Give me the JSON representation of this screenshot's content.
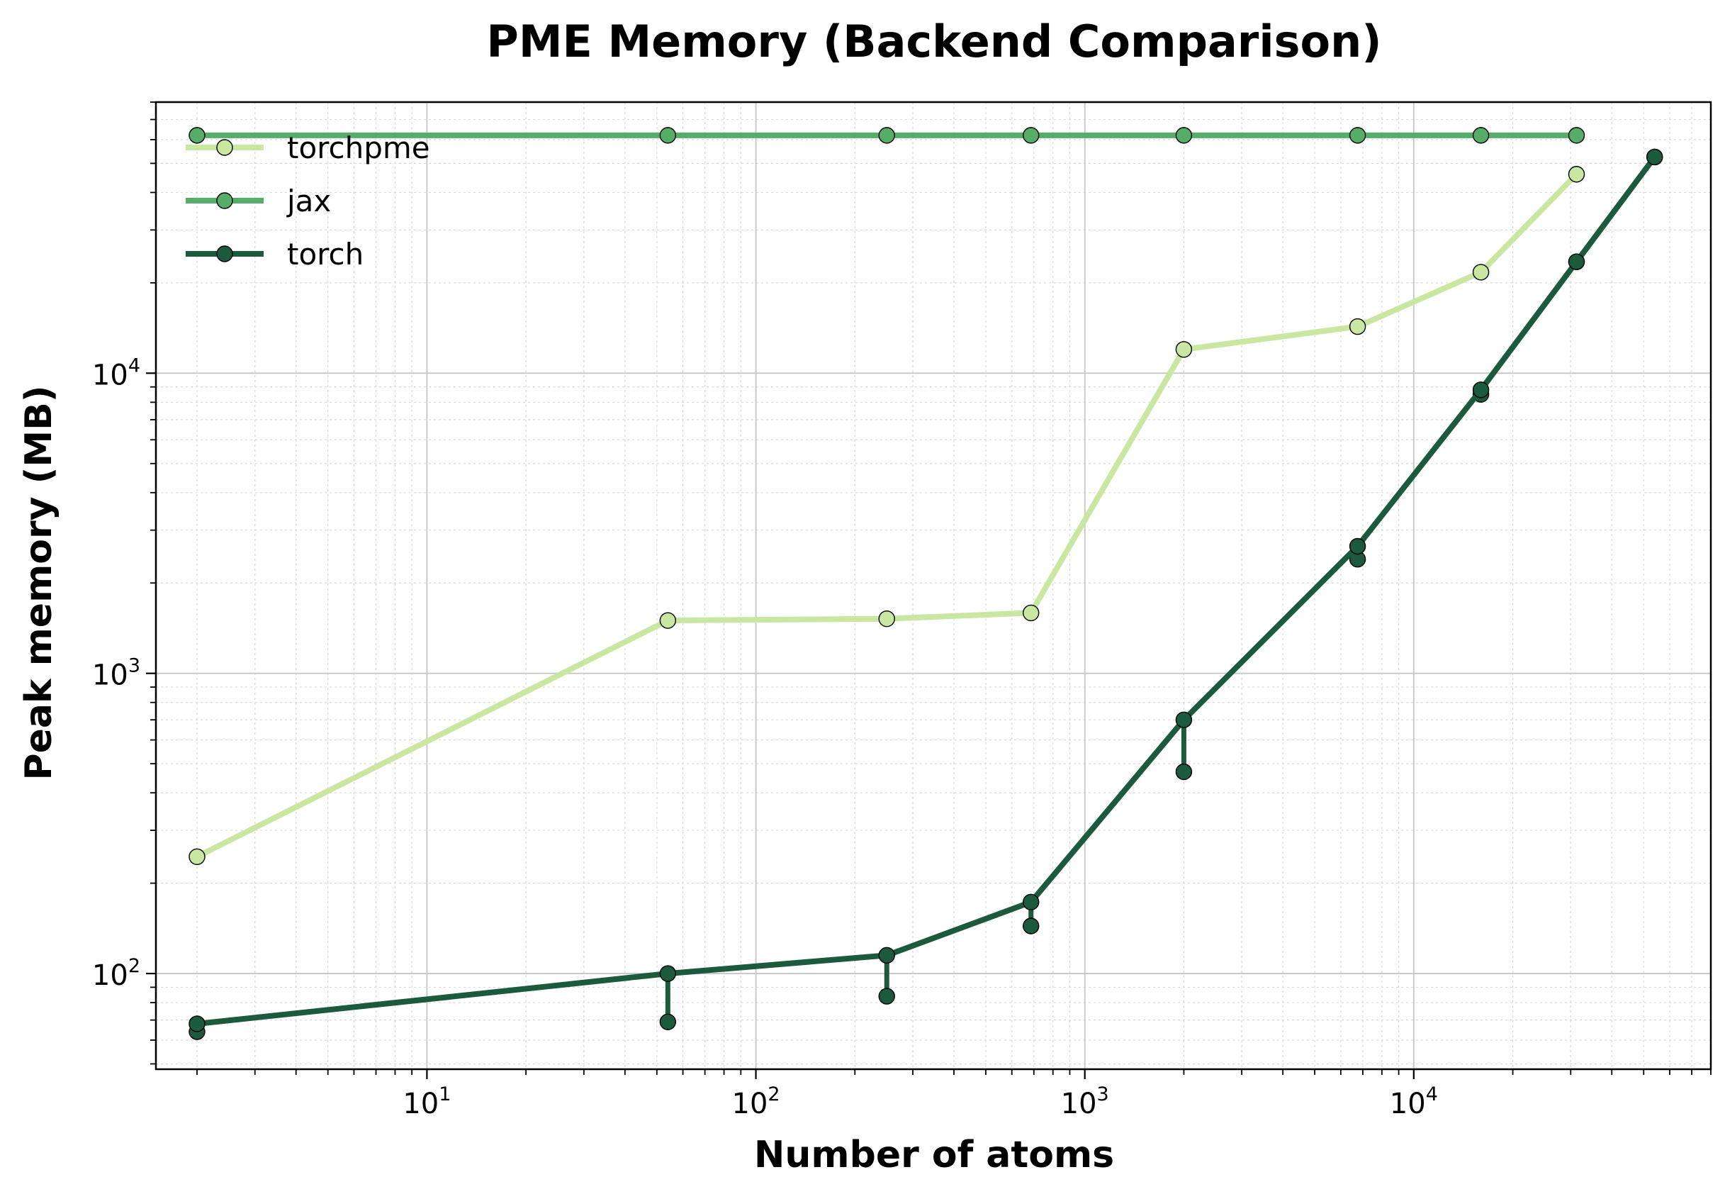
{
  "chart_data": {
    "type": "line",
    "title": "PME Memory (Backend Comparison)",
    "xlabel": "Number of atoms",
    "ylabel": "Peak memory (MB)",
    "x_scale": "log",
    "y_scale": "log",
    "xlim": [
      1.5,
      80000
    ],
    "ylim": [
      48,
      80000
    ],
    "x_major_ticks": [
      {
        "value": 10,
        "base": "10",
        "exp": "1"
      },
      {
        "value": 100,
        "base": "10",
        "exp": "2"
      },
      {
        "value": 1000,
        "base": "10",
        "exp": "3"
      },
      {
        "value": 10000,
        "base": "10",
        "exp": "4"
      }
    ],
    "y_major_ticks": [
      {
        "value": 100,
        "base": "10",
        "exp": "2"
      },
      {
        "value": 1000,
        "base": "10",
        "exp": "3"
      },
      {
        "value": 10000,
        "base": "10",
        "exp": "4"
      }
    ],
    "grid": true,
    "legend_position": "top-left",
    "series": [
      {
        "name": "torchpme",
        "color": "#c9e7a0",
        "x": [
          2,
          54,
          250,
          686,
          2000,
          6750,
          16000,
          31250
        ],
        "y": [
          245,
          1500,
          1520,
          1590,
          12000,
          14300,
          21700,
          46000
        ],
        "min_y": []
      },
      {
        "name": "jax",
        "color": "#55ad68",
        "x": [
          2,
          54,
          250,
          686,
          2000,
          6750,
          16000,
          31250
        ],
        "y": [
          62000,
          62000,
          62000,
          62000,
          62000,
          62000,
          62000,
          62000
        ],
        "min_y": []
      },
      {
        "name": "torch",
        "color": "#1c5a3e",
        "x": [
          2,
          54,
          250,
          686,
          2000,
          6750,
          16000,
          31250,
          54000
        ],
        "y": [
          68,
          100,
          115,
          173,
          700,
          2650,
          8800,
          23500,
          52500
        ],
        "min_y": [
          64,
          69,
          84,
          144,
          470,
          2400,
          8500,
          23500,
          52500
        ]
      }
    ]
  }
}
